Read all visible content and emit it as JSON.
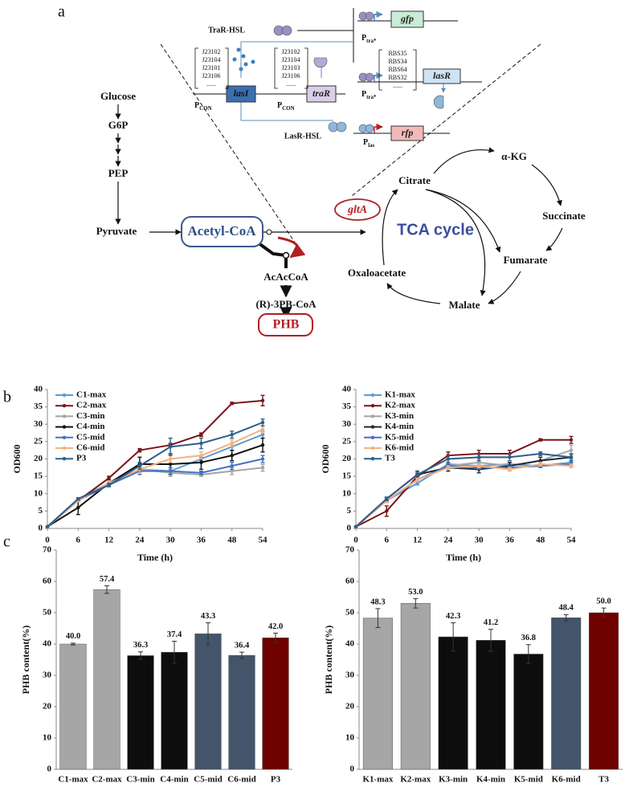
{
  "figure": {
    "panel_labels": [
      "a",
      "b",
      "c"
    ],
    "pathway": {
      "glucose": "Glucose",
      "g6p": "G6P",
      "pep": "PEP",
      "pyruvate": "Pyruvate",
      "acetyl_coa": "Acetyl-CoA",
      "acacoa": "AcAcCoA",
      "r3pb_coa": "(R)-3PB-CoA",
      "phb": "PHB",
      "glta": "gltA",
      "tca_cycle": "TCA cycle",
      "citrate": "Citrate",
      "akg": "α-KG",
      "succinate": "Succinate",
      "fumarate": "Fumarate",
      "malate": "Malate",
      "oxaloacetate": "Oxaloacetate"
    },
    "circuit": {
      "trar_hsl": "TraR-HSL",
      "lasr_hsl": "LasR-HSL",
      "gfp": "gfp",
      "lasr": "lasR",
      "rfp": "rfp",
      "lasi": "lasI",
      "trar": "traR",
      "p_tra_top": {
        "p": "P",
        "sub": "tra*"
      },
      "p_tra_mid": {
        "p": "P",
        "sub": "tra*"
      },
      "p_con_1": {
        "p": "P",
        "sub": "CON"
      },
      "p_con_2": {
        "p": "P",
        "sub": "CON"
      },
      "p_las": {
        "p": "P",
        "sub": "las"
      },
      "lasi_promoters": [
        "J23102",
        "J23104",
        "J23101",
        "J23106",
        "......"
      ],
      "trar_promoters": [
        "J23102",
        "J23104",
        "J23103",
        "J23106",
        "......"
      ],
      "lasr_rbs": [
        "RBS35",
        "RBS34",
        "RBS64",
        "RBS32",
        "......"
      ]
    }
  },
  "chart_data": [
    {
      "type": "line",
      "categories": [
        "0",
        "6",
        "12",
        "24",
        "30",
        "36",
        "48",
        "54"
      ],
      "xlabel": "Time (h)",
      "ylabel": "OD600",
      "ylim": [
        0,
        40
      ],
      "yticks": [
        0,
        5,
        10,
        15,
        20,
        25,
        30,
        35,
        40
      ],
      "legend": "upper left",
      "series": [
        {
          "name": "C1-max",
          "color": "#5b9bd5",
          "values": [
            0.5,
            8.5,
            13,
            17,
            16.5,
            20,
            23.5,
            27
          ],
          "errors": [
            0,
            0.3,
            0.5,
            1,
            0.5,
            0.5,
            1,
            1
          ]
        },
        {
          "name": "C2-max",
          "color": "#7b1418",
          "values": [
            0.5,
            8,
            14.5,
            22.5,
            24,
            27,
            36,
            36.8
          ],
          "errors": [
            0,
            0.3,
            0.5,
            0.5,
            0.5,
            0.5,
            0.3,
            1.5
          ]
        },
        {
          "name": "C3-min",
          "color": "#a5a5a5",
          "values": [
            0.5,
            8,
            13,
            17,
            16,
            15.5,
            16.5,
            17.5
          ],
          "errors": [
            0,
            0.3,
            0.5,
            1,
            1,
            0.5,
            1,
            1
          ]
        },
        {
          "name": "C4-min",
          "color": "#111111",
          "values": [
            0.5,
            6,
            13,
            18.5,
            18.5,
            19,
            21,
            24
          ],
          "errors": [
            0,
            2,
            0.5,
            2,
            3,
            2,
            1.5,
            2
          ]
        },
        {
          "name": "C5-mid",
          "color": "#4472c4",
          "values": [
            0.5,
            8,
            12.5,
            16.5,
            16.5,
            16,
            18,
            20
          ],
          "errors": [
            0,
            0.3,
            0.5,
            1,
            1,
            0.5,
            1,
            1
          ]
        },
        {
          "name": "C6-mid",
          "color": "#f4b183",
          "values": [
            0.5,
            8,
            13,
            17,
            20,
            21,
            24.5,
            28.5
          ],
          "errors": [
            0,
            0.3,
            0.5,
            1,
            1,
            1,
            1,
            1
          ]
        },
        {
          "name": "P3",
          "color": "#2e5f8a",
          "values": [
            0.5,
            8.5,
            12.5,
            18,
            23.5,
            24.5,
            27,
            30.5
          ],
          "errors": [
            0,
            0.3,
            0.5,
            1,
            2.5,
            1.5,
            1,
            1
          ]
        }
      ]
    },
    {
      "type": "line",
      "categories": [
        "0",
        "6",
        "12",
        "24",
        "30",
        "36",
        "48",
        "54"
      ],
      "xlabel": "Time (h)",
      "ylabel": "OD600",
      "ylim": [
        0,
        40
      ],
      "yticks": [
        0,
        5,
        10,
        15,
        20,
        25,
        30,
        35,
        40
      ],
      "legend": "upper left",
      "series": [
        {
          "name": "K1-max",
          "color": "#5b9bd5",
          "values": [
            0.5,
            8,
            13,
            18.5,
            18,
            18.5,
            18,
            19
          ],
          "errors": [
            0,
            0.5,
            0.5,
            0.5,
            1,
            0.5,
            0.5,
            1
          ]
        },
        {
          "name": "K2-max",
          "color": "#7b1418",
          "values": [
            0.5,
            5,
            15,
            21,
            21.5,
            21.5,
            25.5,
            25.5
          ],
          "errors": [
            0,
            1.5,
            0.5,
            1,
            1,
            1,
            0.3,
            1
          ]
        },
        {
          "name": "K3-min",
          "color": "#a5a5a5",
          "values": [
            0.5,
            8,
            14,
            18,
            19,
            18,
            19.5,
            22.5
          ],
          "errors": [
            0,
            0.5,
            0.5,
            1,
            1,
            1,
            1,
            1.5
          ]
        },
        {
          "name": "K4-min",
          "color": "#222a35",
          "values": [
            0.5,
            8.5,
            15.5,
            17.5,
            17,
            18,
            19.5,
            20.5
          ],
          "errors": [
            0,
            0.5,
            1,
            1,
            1,
            1,
            1,
            1
          ]
        },
        {
          "name": "K5-mid",
          "color": "#4472c4",
          "values": [
            0.5,
            8,
            14,
            18,
            17.5,
            17.5,
            18,
            18.5
          ],
          "errors": [
            0,
            0.5,
            0.5,
            0.5,
            0.5,
            0.5,
            0.5,
            0.5
          ]
        },
        {
          "name": "K6-mid",
          "color": "#f4b183",
          "values": [
            0.5,
            8,
            14,
            17.5,
            18,
            17,
            18.5,
            18
          ],
          "errors": [
            0,
            0.5,
            0.5,
            0.5,
            0.5,
            0.5,
            0.5,
            0.5
          ]
        },
        {
          "name": "T3",
          "color": "#2e5f8a",
          "values": [
            0.5,
            8.5,
            15.5,
            20,
            20.5,
            20.5,
            21.5,
            20.5
          ],
          "errors": [
            0,
            0.5,
            0.5,
            1,
            1,
            1,
            0.5,
            1
          ]
        }
      ]
    },
    {
      "type": "bar",
      "categories": [
        "C1-max",
        "C2-max",
        "C3-min",
        "C4-min",
        "C5-mid",
        "C6-mid",
        "P3"
      ],
      "ylabel": "PHB content(%)",
      "ylim": [
        0,
        70
      ],
      "yticks": [
        0,
        10,
        20,
        30,
        40,
        50,
        60,
        70
      ],
      "values": [
        40.0,
        57.4,
        36.3,
        37.4,
        43.3,
        36.4,
        42.0
      ],
      "value_labels": [
        "40.0",
        "57.4",
        "36.3",
        "37.4",
        "43.3",
        "36.4",
        "42.0"
      ],
      "errors": [
        0.3,
        1.2,
        1.2,
        3.5,
        3.5,
        1,
        1.5
      ],
      "colors": [
        "#a6a6a6",
        "#a6a6a6",
        "#0d0d0d",
        "#0d0d0d",
        "#44546a",
        "#44546a",
        "#6f0000"
      ]
    },
    {
      "type": "bar",
      "categories": [
        "K1-max",
        "K2-max",
        "K3-min",
        "K4-min",
        "K5-mid",
        "K6-mid",
        "T3"
      ],
      "ylabel": "PHB content(%)",
      "ylim": [
        0,
        70
      ],
      "yticks": [
        0,
        10,
        20,
        30,
        40,
        50,
        60,
        70
      ],
      "values": [
        48.3,
        53.0,
        42.3,
        41.2,
        36.8,
        48.4,
        50.0
      ],
      "value_labels": [
        "48.3",
        "53.0",
        "42.3",
        "41.2",
        "36.8",
        "48.4",
        "50.0"
      ],
      "errors": [
        3,
        1.5,
        4.5,
        3.5,
        3,
        1,
        1.5
      ],
      "colors": [
        "#a6a6a6",
        "#a6a6a6",
        "#0d0d0d",
        "#0d0d0d",
        "#0d0d0d",
        "#44546a",
        "#6f0000"
      ]
    }
  ]
}
